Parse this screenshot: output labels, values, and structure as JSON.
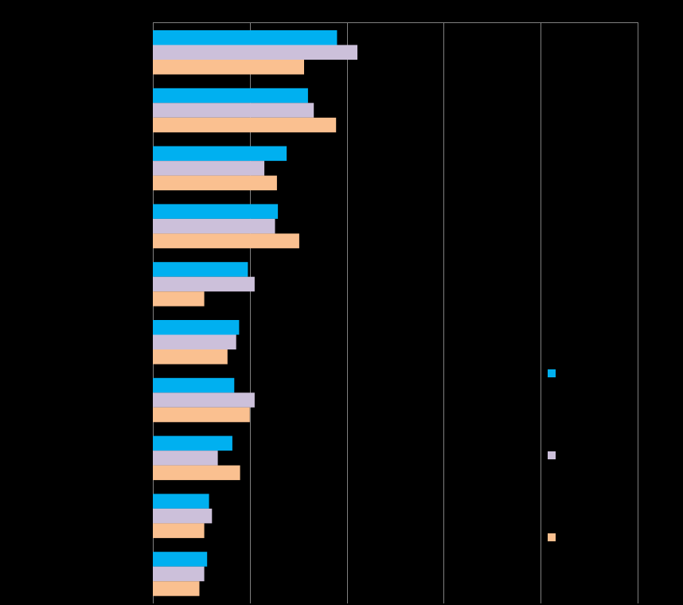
{
  "chart_data": {
    "type": "bar",
    "orientation": "horizontal",
    "categories": [
      "",
      "",
      "",
      "",
      "",
      "",
      "",
      "",
      "",
      ""
    ],
    "series": [
      {
        "color": "#00b0f0",
        "values": [
          19.0,
          16.0,
          13.8,
          12.9,
          9.8,
          8.9,
          8.4,
          8.2,
          5.8,
          5.6
        ]
      },
      {
        "color": "#ccc0da",
        "values": [
          21.1,
          16.6,
          11.5,
          12.6,
          10.5,
          8.6,
          10.5,
          6.7,
          6.1,
          5.3
        ]
      },
      {
        "color": "#fac090",
        "values": [
          15.6,
          18.9,
          12.8,
          15.1,
          5.3,
          7.7,
          10.0,
          9.0,
          5.3,
          4.8
        ]
      }
    ],
    "xlim": [
      0,
      50
    ],
    "x_grid_values": [
      0,
      10,
      20,
      30,
      40,
      50
    ],
    "grid": true,
    "legend_position": "right"
  }
}
